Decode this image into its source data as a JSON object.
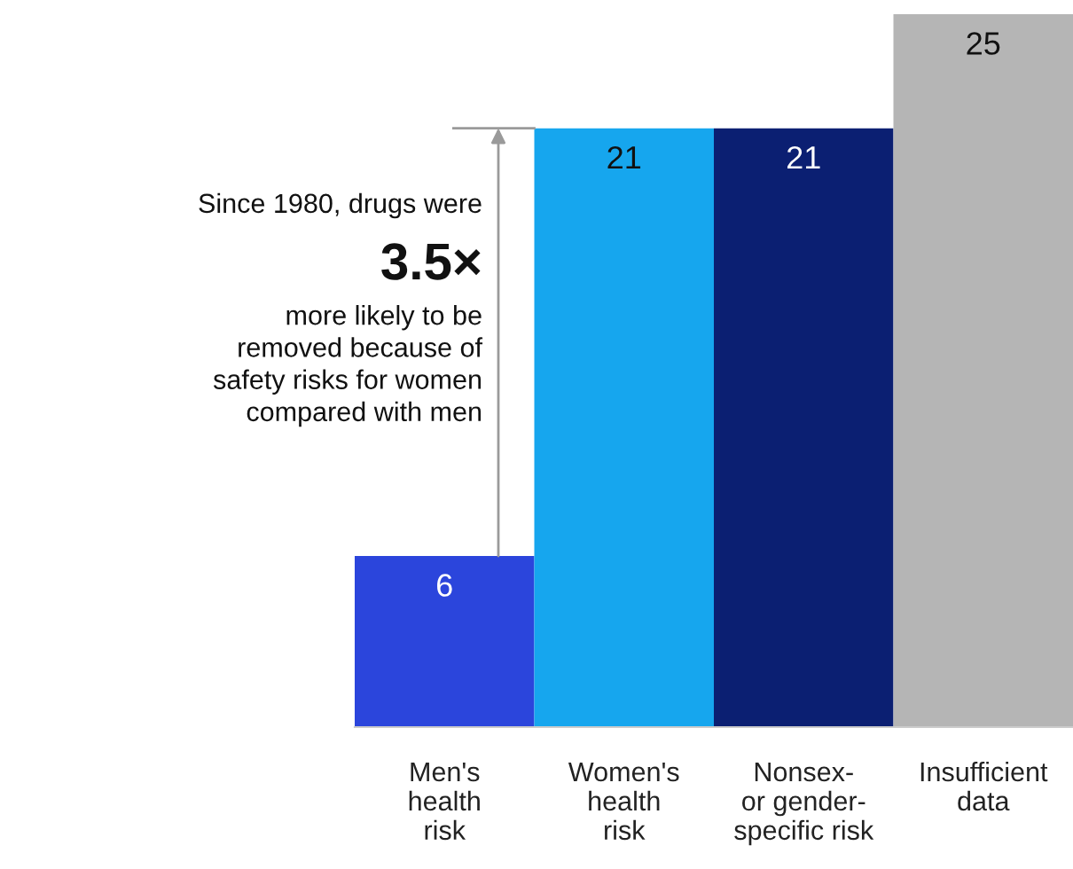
{
  "chart_data": {
    "type": "bar",
    "categories": [
      "Men's\nhealth\nrisk",
      "Women's\nhealth\nrisk",
      "Nonsex-\nor gender-\nspecific risk",
      "Insufficient\ndata"
    ],
    "values": [
      6,
      21,
      21,
      25
    ],
    "colors": [
      "#2b45dc",
      "#16a6ee",
      "#0b1f72",
      "#b5b5b5"
    ],
    "data_labels": true,
    "ylim": [
      0,
      25
    ],
    "tick_labels": "x",
    "grid": false,
    "ref_lines": [
      {
        "axis": "y",
        "value": 21,
        "color": "#9a9a9a"
      }
    ],
    "annotations": [
      "Since 1980, drugs were",
      "3.5×",
      "more likely to be\nremoved because of\nsafety risks for women\ncompared with men"
    ]
  }
}
